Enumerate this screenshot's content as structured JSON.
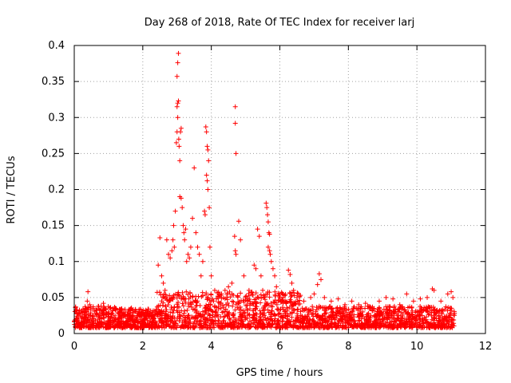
{
  "chart_data": {
    "type": "scatter",
    "title": "Day 268 of 2018, Rate Of TEC Index for receiver larj",
    "xlabel": "GPS time / hours",
    "ylabel": "ROTI / TECUs",
    "xlim": [
      0,
      12
    ],
    "ylim": [
      0,
      0.4
    ],
    "grid": true,
    "marker": "+",
    "series_color": "#ff0000",
    "x_ticks": [
      {
        "value": 0,
        "label": "0"
      },
      {
        "value": 2,
        "label": "2"
      },
      {
        "value": 4,
        "label": "4"
      },
      {
        "value": 6,
        "label": "6"
      },
      {
        "value": 8,
        "label": "8"
      },
      {
        "value": 10,
        "label": "10"
      },
      {
        "value": 12,
        "label": "12"
      }
    ],
    "y_ticks": [
      {
        "value": 0,
        "label": "0"
      },
      {
        "value": 0.05,
        "label": "0.05"
      },
      {
        "value": 0.1,
        "label": "0.1"
      },
      {
        "value": 0.15,
        "label": "0.15"
      },
      {
        "value": 0.2,
        "label": "0.2"
      },
      {
        "value": 0.25,
        "label": "0.25"
      },
      {
        "value": 0.3,
        "label": "0.3"
      },
      {
        "value": 0.35,
        "label": "0.35"
      },
      {
        "value": 0.4,
        "label": "0.4"
      }
    ],
    "background_band": {
      "x_start": 0,
      "x_end": 11.1
    },
    "points": [
      [
        0.1,
        0.018
      ],
      [
        0.2,
        0.022
      ],
      [
        0.3,
        0.03
      ],
      [
        0.38,
        0.045
      ],
      [
        0.4,
        0.058
      ],
      [
        0.45,
        0.04
      ],
      [
        0.55,
        0.035
      ],
      [
        0.7,
        0.038
      ],
      [
        0.85,
        0.042
      ],
      [
        1.0,
        0.03
      ],
      [
        1.2,
        0.035
      ],
      [
        1.4,
        0.028
      ],
      [
        1.6,
        0.025
      ],
      [
        1.8,
        0.022
      ],
      [
        2.0,
        0.018
      ],
      [
        2.2,
        0.025
      ],
      [
        2.45,
        0.095
      ],
      [
        2.5,
        0.133
      ],
      [
        2.55,
        0.08
      ],
      [
        2.6,
        0.07
      ],
      [
        2.65,
        0.06
      ],
      [
        2.7,
        0.13
      ],
      [
        2.75,
        0.11
      ],
      [
        2.8,
        0.105
      ],
      [
        2.85,
        0.115
      ],
      [
        2.88,
        0.13
      ],
      [
        2.9,
        0.15
      ],
      [
        2.92,
        0.12
      ],
      [
        2.95,
        0.17
      ],
      [
        2.98,
        0.265
      ],
      [
        3.0,
        0.28
      ],
      [
        3.02,
        0.3
      ],
      [
        3.0,
        0.315
      ],
      [
        3.02,
        0.32
      ],
      [
        3.04,
        0.323
      ],
      [
        3.0,
        0.357
      ],
      [
        3.02,
        0.376
      ],
      [
        3.04,
        0.389
      ],
      [
        3.05,
        0.27
      ],
      [
        3.06,
        0.26
      ],
      [
        3.08,
        0.24
      ],
      [
        3.1,
        0.28
      ],
      [
        3.12,
        0.285
      ],
      [
        3.08,
        0.19
      ],
      [
        3.12,
        0.188
      ],
      [
        3.15,
        0.175
      ],
      [
        3.18,
        0.15
      ],
      [
        3.2,
        0.14
      ],
      [
        3.22,
        0.13
      ],
      [
        3.25,
        0.145
      ],
      [
        3.28,
        0.1
      ],
      [
        3.32,
        0.11
      ],
      [
        3.36,
        0.105
      ],
      [
        3.4,
        0.12
      ],
      [
        3.45,
        0.16
      ],
      [
        3.5,
        0.23
      ],
      [
        3.55,
        0.14
      ],
      [
        3.6,
        0.12
      ],
      [
        3.65,
        0.11
      ],
      [
        3.7,
        0.08
      ],
      [
        3.75,
        0.1
      ],
      [
        3.8,
        0.17
      ],
      [
        3.82,
        0.165
      ],
      [
        3.84,
        0.287
      ],
      [
        3.86,
        0.28
      ],
      [
        3.88,
        0.26
      ],
      [
        3.9,
        0.255
      ],
      [
        3.86,
        0.22
      ],
      [
        3.88,
        0.212
      ],
      [
        3.9,
        0.2
      ],
      [
        3.92,
        0.24
      ],
      [
        3.94,
        0.175
      ],
      [
        3.96,
        0.12
      ],
      [
        4.0,
        0.08
      ],
      [
        4.1,
        0.06
      ],
      [
        4.2,
        0.05
      ],
      [
        4.3,
        0.055
      ],
      [
        4.4,
        0.06
      ],
      [
        4.5,
        0.065
      ],
      [
        4.6,
        0.07
      ],
      [
        4.7,
        0.315
      ],
      [
        4.7,
        0.292
      ],
      [
        4.72,
        0.25
      ],
      [
        4.68,
        0.135
      ],
      [
        4.7,
        0.115
      ],
      [
        4.72,
        0.11
      ],
      [
        4.8,
        0.156
      ],
      [
        4.85,
        0.13
      ],
      [
        4.95,
        0.08
      ],
      [
        5.1,
        0.06
      ],
      [
        5.25,
        0.095
      ],
      [
        5.3,
        0.09
      ],
      [
        5.35,
        0.145
      ],
      [
        5.4,
        0.135
      ],
      [
        5.45,
        0.08
      ],
      [
        5.5,
        0.06
      ],
      [
        5.6,
        0.181
      ],
      [
        5.62,
        0.175
      ],
      [
        5.64,
        0.165
      ],
      [
        5.66,
        0.155
      ],
      [
        5.68,
        0.14
      ],
      [
        5.7,
        0.138
      ],
      [
        5.66,
        0.12
      ],
      [
        5.7,
        0.115
      ],
      [
        5.72,
        0.11
      ],
      [
        5.75,
        0.1
      ],
      [
        5.8,
        0.09
      ],
      [
        5.85,
        0.08
      ],
      [
        5.9,
        0.065
      ],
      [
        6.0,
        0.055
      ],
      [
        6.1,
        0.05
      ],
      [
        6.25,
        0.088
      ],
      [
        6.3,
        0.082
      ],
      [
        6.35,
        0.07
      ],
      [
        6.4,
        0.06
      ],
      [
        6.5,
        0.05
      ],
      [
        6.7,
        0.045
      ],
      [
        6.9,
        0.05
      ],
      [
        7.0,
        0.055
      ],
      [
        7.1,
        0.068
      ],
      [
        7.15,
        0.083
      ],
      [
        7.2,
        0.075
      ],
      [
        7.3,
        0.05
      ],
      [
        7.5,
        0.045
      ],
      [
        7.7,
        0.048
      ],
      [
        7.9,
        0.04
      ],
      [
        8.1,
        0.045
      ],
      [
        8.3,
        0.04
      ],
      [
        8.5,
        0.042
      ],
      [
        8.7,
        0.035
      ],
      [
        8.9,
        0.045
      ],
      [
        9.1,
        0.05
      ],
      [
        9.3,
        0.048
      ],
      [
        9.5,
        0.04
      ],
      [
        9.7,
        0.055
      ],
      [
        9.9,
        0.045
      ],
      [
        10.1,
        0.048
      ],
      [
        10.3,
        0.05
      ],
      [
        10.45,
        0.062
      ],
      [
        10.5,
        0.06
      ],
      [
        10.7,
        0.045
      ],
      [
        10.9,
        0.055
      ],
      [
        11.0,
        0.058
      ],
      [
        11.05,
        0.05
      ]
    ]
  }
}
